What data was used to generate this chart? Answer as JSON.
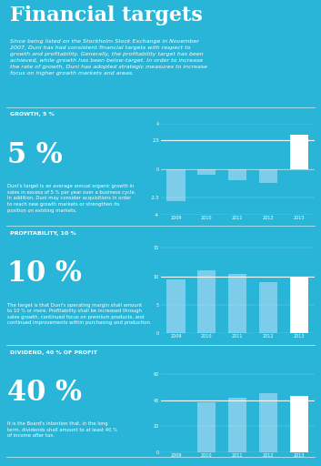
{
  "bg_color": "#29B5D8",
  "text_color": "#FFFFFF",
  "bar_color_normal": "#7DCCEA",
  "bar_color_highlight": "#FFFFFF",
  "title": "Financial targets",
  "subtitle": "Since being listed on the Stockholm Stock Exchange in November\n2007, Duni has had consistent financial targets with respect to\ngrowth and profitability. Generally, the profitability target has been\nachieved, while growth has been below-target. In order to increase\nthe rate of growth, Duni has adopted strategic measures to increase\nfocus on higher growth markets and areas.",
  "sections": [
    {
      "label": "GROWTH, 5 %",
      "big_number": "5 %",
      "description": "Duni's target is an average annual organic growth in\nsales in excess of 5 % per year over a business cycle.\nIn addition, Duni may consider acquisitions in order\nto reach new growth markets or strengthen its\nposition on existing markets.",
      "years": [
        "2009",
        "2010",
        "2011",
        "2012",
        "2013"
      ],
      "values": [
        -2.8,
        -0.5,
        -1.0,
        -1.2,
        3.0
      ],
      "ylim": [
        -4,
        4
      ],
      "yticks": [
        -4,
        -2.5,
        0,
        2.5,
        4
      ],
      "target_line": 2.5,
      "highlight_last": true
    },
    {
      "label": "PROFITABILITY, 10 %",
      "big_number": "10 %",
      "description": "The target is that Duni's operating margin shall amount\nto 10 % or more. Profitability shall be increased through\nsales growth, continued focus on premium products, and\ncontinued improvements within purchasing and production.",
      "years": [
        "2009",
        "2010",
        "2011",
        "2012",
        "2013"
      ],
      "values": [
        9.5,
        11.0,
        10.5,
        9.0,
        10.0
      ],
      "ylim": [
        0,
        16
      ],
      "yticks": [
        0,
        5,
        10,
        15
      ],
      "target_line": 10,
      "highlight_last": true
    },
    {
      "label": "DIVIDEND, 40 % OF PROFIT",
      "big_number": "40 %",
      "description": "It is the Board's intention that, in the long\nterm, dividends shall amount to at least 40 %\nof income after tax.",
      "years": [
        "2009",
        "2010",
        "2011",
        "2012",
        "2013"
      ],
      "values": [
        0,
        38,
        42,
        45,
        43
      ],
      "ylim": [
        0,
        70
      ],
      "yticks": [
        0,
        20,
        40,
        60
      ],
      "target_line": 40,
      "highlight_last": true
    }
  ]
}
